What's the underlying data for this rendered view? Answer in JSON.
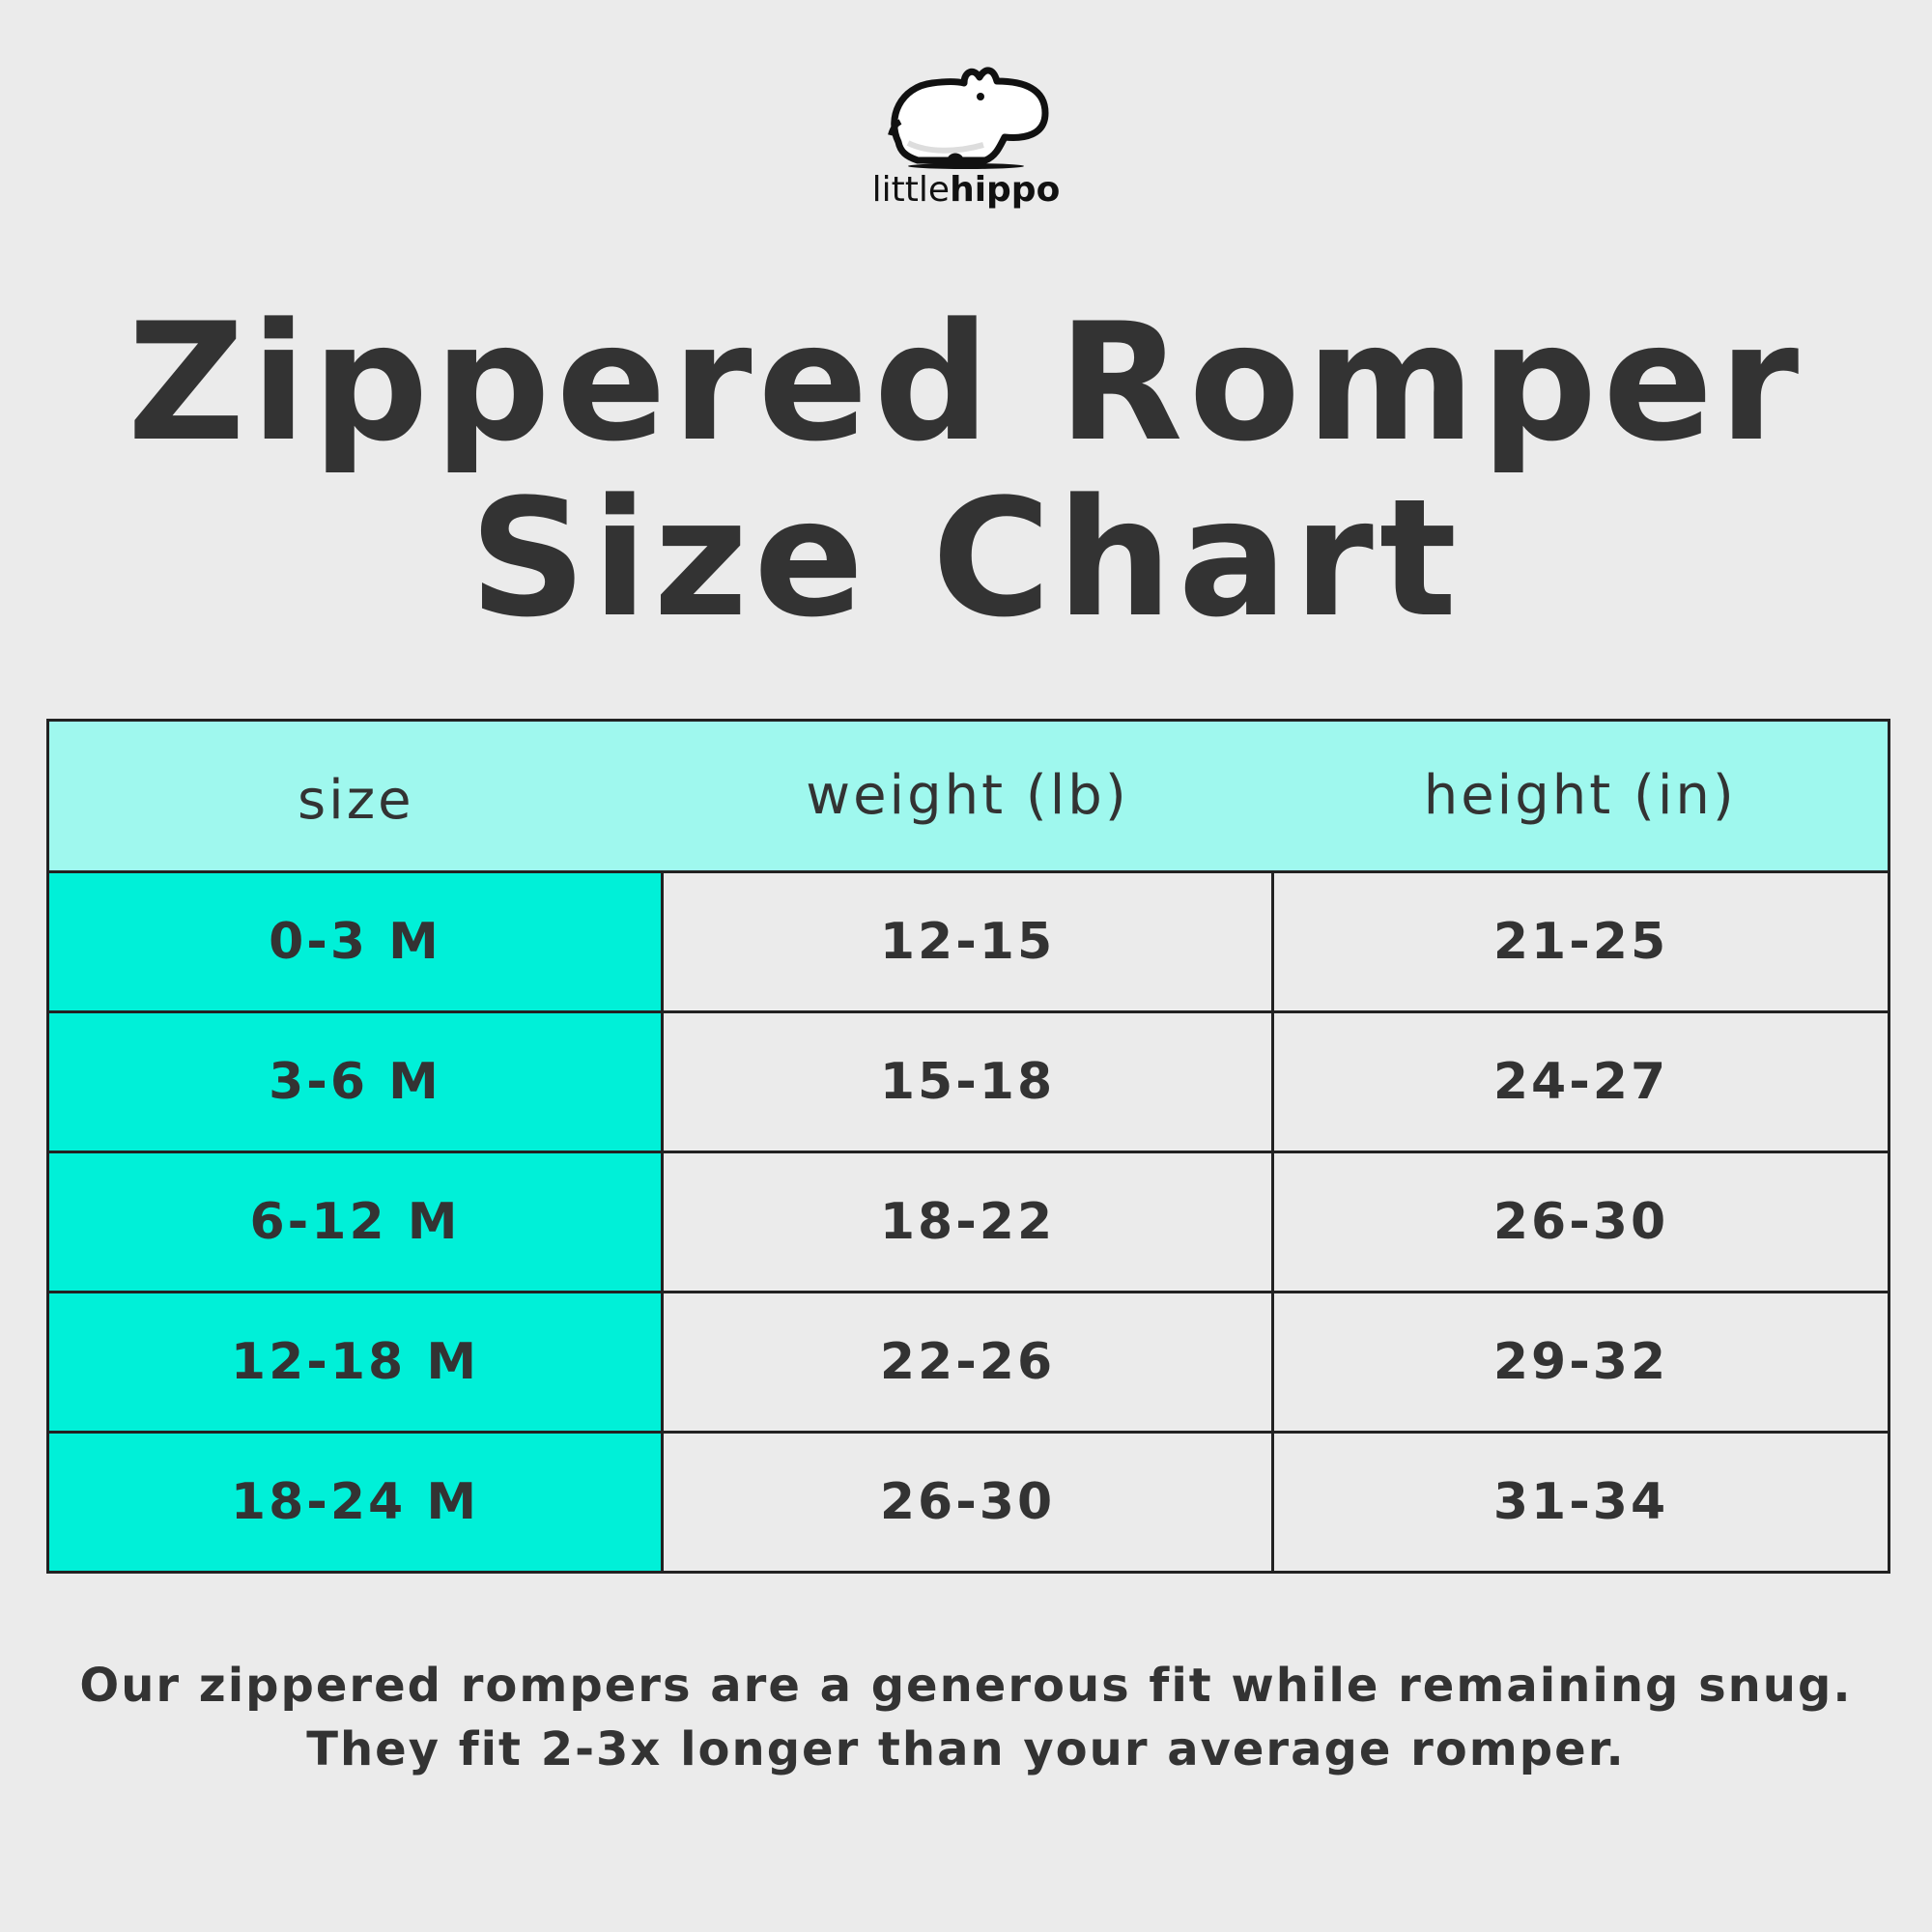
{
  "brand": {
    "logo_text_light": "little",
    "logo_text_bold": "hippo",
    "icon": "hippo-logo-icon"
  },
  "title": {
    "line1": "Zippered Romper",
    "line2": "Size Chart"
  },
  "table": {
    "headers": [
      "size",
      "weight (lb)",
      "height (in)"
    ],
    "rows": [
      [
        "0-3 M",
        "12-15",
        "21-25"
      ],
      [
        "3-6 M",
        "15-18",
        "24-27"
      ],
      [
        "6-12 M",
        "18-22",
        "26-30"
      ],
      [
        "12-18 M",
        "22-26",
        "29-32"
      ],
      [
        "18-24 M",
        "26-30",
        "31-34"
      ]
    ]
  },
  "footer": {
    "line1": "Our zippered rompers are a generous fit while remaining snug.",
    "line2": "They fit 2-3x longer than your average romper."
  },
  "colors": {
    "background": "#ebebeb",
    "header": "#9ff8ee",
    "size_column": "#00f0d8",
    "text": "#333333"
  }
}
